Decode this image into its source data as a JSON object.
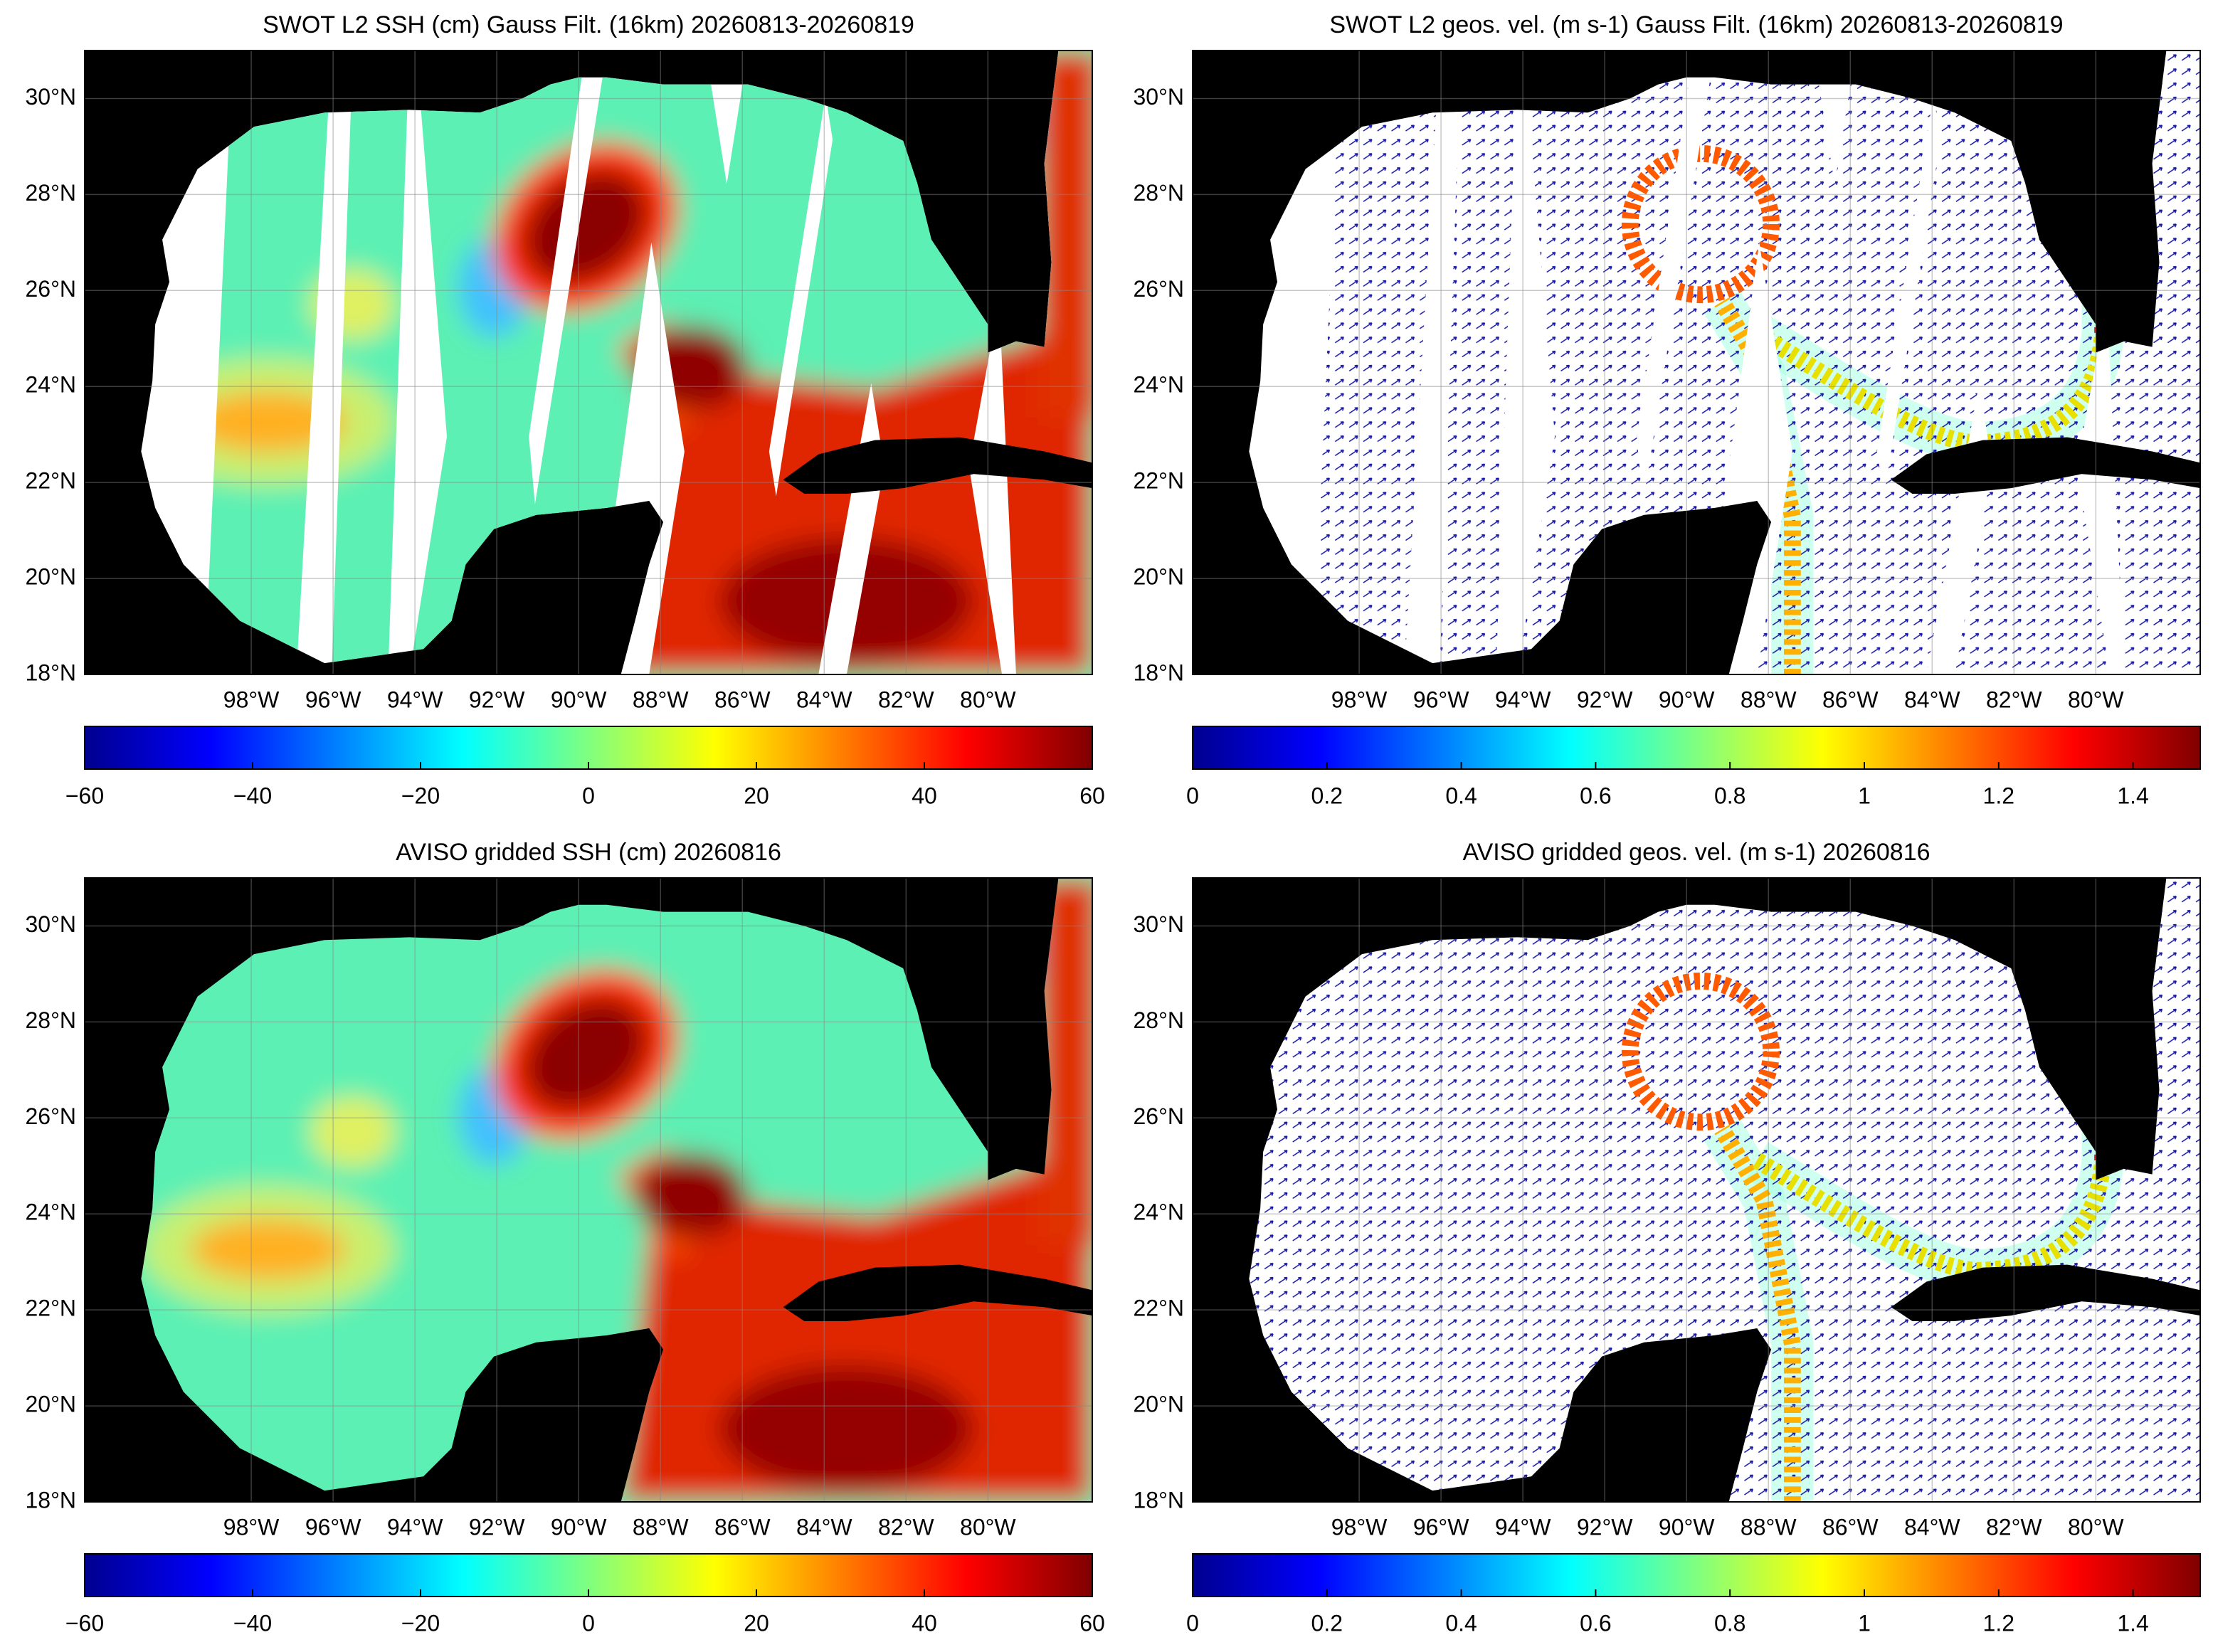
{
  "chart_data": [
    {
      "type": "map",
      "title": "SWOT L2 SSH (cm) Gauss Filt. (16km) 20260813-20260819",
      "xlim": [
        -102.07,
        -77.45
      ],
      "ylim": [
        18,
        31
      ],
      "xticks": [
        {
          "value": -98,
          "label": "98°W"
        },
        {
          "value": -96,
          "label": "96°W"
        },
        {
          "value": -94,
          "label": "94°W"
        },
        {
          "value": -92,
          "label": "92°W"
        },
        {
          "value": -90,
          "label": "90°W"
        },
        {
          "value": -88,
          "label": "88°W"
        },
        {
          "value": -86,
          "label": "86°W"
        },
        {
          "value": -84,
          "label": "84°W"
        },
        {
          "value": -82,
          "label": "82°W"
        },
        {
          "value": -80,
          "label": "80°W"
        }
      ],
      "yticks": [
        {
          "value": 18,
          "label": "18°N"
        },
        {
          "value": 20,
          "label": "20°N"
        },
        {
          "value": 22,
          "label": "22°N"
        },
        {
          "value": 24,
          "label": "24°N"
        },
        {
          "value": 26,
          "label": "26°N"
        },
        {
          "value": 28,
          "label": "28°N"
        },
        {
          "value": 30,
          "label": "30°N"
        }
      ],
      "grid": true,
      "colorbar": {
        "lim": [
          -60,
          60
        ],
        "ticks": [
          {
            "value": -60,
            "label": "−60"
          },
          {
            "value": -40,
            "label": "−40"
          },
          {
            "value": -20,
            "label": "−20"
          },
          0,
          20,
          40,
          60
        ]
      }
    },
    {
      "type": "map",
      "title": "SWOT L2 geos. vel. (m s-1) Gauss Filt. (16km) 20260813-20260819",
      "xlim": [
        -102.07,
        -77.45
      ],
      "ylim": [
        18,
        31
      ],
      "xticks": [
        {
          "value": -98,
          "label": "98°W"
        },
        {
          "value": -96,
          "label": "96°W"
        },
        {
          "value": -94,
          "label": "94°W"
        },
        {
          "value": -92,
          "label": "92°W"
        },
        {
          "value": -90,
          "label": "90°W"
        },
        {
          "value": -88,
          "label": "88°W"
        },
        {
          "value": -86,
          "label": "86°W"
        },
        {
          "value": -84,
          "label": "84°W"
        },
        {
          "value": -82,
          "label": "82°W"
        },
        {
          "value": -80,
          "label": "80°W"
        }
      ],
      "yticks": [
        {
          "value": 18,
          "label": "18°N"
        },
        {
          "value": 20,
          "label": "20°N"
        },
        {
          "value": 22,
          "label": "22°N"
        },
        {
          "value": 24,
          "label": "24°N"
        },
        {
          "value": 26,
          "label": "26°N"
        },
        {
          "value": 28,
          "label": "28°N"
        },
        {
          "value": 30,
          "label": "30°N"
        }
      ],
      "grid": true,
      "colorbar": {
        "lim": [
          0,
          1.5
        ],
        "ticks": [
          0,
          0.2,
          0.4,
          0.6,
          0.8,
          1,
          1.2,
          1.4
        ]
      }
    },
    {
      "type": "map",
      "title": "AVISO gridded SSH (cm) 20260816",
      "xlim": [
        -102.07,
        -77.45
      ],
      "ylim": [
        18,
        31
      ],
      "xticks": [
        {
          "value": -98,
          "label": "98°W"
        },
        {
          "value": -96,
          "label": "96°W"
        },
        {
          "value": -94,
          "label": "94°W"
        },
        {
          "value": -92,
          "label": "92°W"
        },
        {
          "value": -90,
          "label": "90°W"
        },
        {
          "value": -88,
          "label": "88°W"
        },
        {
          "value": -86,
          "label": "86°W"
        },
        {
          "value": -84,
          "label": "84°W"
        },
        {
          "value": -82,
          "label": "82°W"
        },
        {
          "value": -80,
          "label": "80°W"
        }
      ],
      "yticks": [
        {
          "value": 18,
          "label": "18°N"
        },
        {
          "value": 20,
          "label": "20°N"
        },
        {
          "value": 22,
          "label": "22°N"
        },
        {
          "value": 24,
          "label": "24°N"
        },
        {
          "value": 26,
          "label": "26°N"
        },
        {
          "value": 28,
          "label": "28°N"
        },
        {
          "value": 30,
          "label": "30°N"
        }
      ],
      "grid": true,
      "colorbar": {
        "lim": [
          -60,
          60
        ],
        "ticks": [
          {
            "value": -60,
            "label": "−60"
          },
          {
            "value": -40,
            "label": "−40"
          },
          {
            "value": -20,
            "label": "−20"
          },
          0,
          20,
          40,
          60
        ]
      }
    },
    {
      "type": "map",
      "title": "AVISO gridded geos. vel. (m s-1)  20260816",
      "xlim": [
        -102.07,
        -77.45
      ],
      "ylim": [
        18,
        31
      ],
      "xticks": [
        {
          "value": -98,
          "label": "98°W"
        },
        {
          "value": -96,
          "label": "96°W"
        },
        {
          "value": -94,
          "label": "94°W"
        },
        {
          "value": -92,
          "label": "92°W"
        },
        {
          "value": -90,
          "label": "90°W"
        },
        {
          "value": -88,
          "label": "88°W"
        },
        {
          "value": -86,
          "label": "86°W"
        },
        {
          "value": -84,
          "label": "84°W"
        },
        {
          "value": -82,
          "label": "82°W"
        },
        {
          "value": -80,
          "label": "80°W"
        }
      ],
      "yticks": [
        {
          "value": 18,
          "label": "18°N"
        },
        {
          "value": 20,
          "label": "20°N"
        },
        {
          "value": 22,
          "label": "22°N"
        },
        {
          "value": 24,
          "label": "24°N"
        },
        {
          "value": 26,
          "label": "26°N"
        },
        {
          "value": 28,
          "label": "28°N"
        },
        {
          "value": 30,
          "label": "30°N"
        }
      ],
      "grid": true,
      "colorbar": {
        "lim": [
          0,
          1.5
        ],
        "ticks": [
          0,
          0.2,
          0.4,
          0.6,
          0.8,
          1,
          1.2,
          1.4
        ]
      }
    }
  ]
}
